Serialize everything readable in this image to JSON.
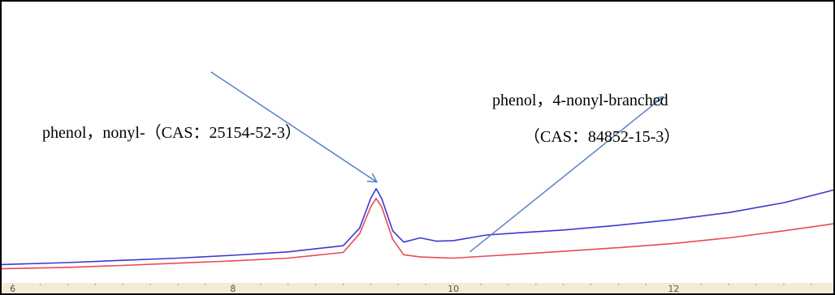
{
  "chart_data": {
    "type": "line",
    "title": "",
    "xlabel": "",
    "ylabel": "",
    "xlim": [
      5.9,
      13.45
    ],
    "ylim": [
      0,
      100
    ],
    "xticks": [
      "6",
      "8",
      "10",
      "12"
    ],
    "xtick_values": [
      6,
      8,
      10,
      12
    ],
    "grid": false,
    "series": [
      {
        "color": "#3a3ad0",
        "x": [
          5.9,
          6.5,
          7.0,
          7.5,
          8.0,
          8.5,
          9.0,
          9.15,
          9.25,
          9.3,
          9.35,
          9.45,
          9.55,
          9.7,
          9.85,
          10.0,
          10.3,
          10.6,
          11.0,
          11.5,
          12.0,
          12.5,
          13.0,
          13.45
        ],
        "y": [
          6.5,
          7.2,
          8.0,
          8.8,
          9.8,
          11.0,
          13.2,
          19.5,
          30.0,
          33.5,
          30.0,
          18.5,
          14.5,
          16.0,
          14.8,
          15.0,
          17.0,
          17.8,
          18.8,
          20.5,
          22.5,
          25.0,
          28.5,
          33.0
        ]
      },
      {
        "color": "#e84a5a",
        "x": [
          5.9,
          6.5,
          7.0,
          7.5,
          8.0,
          8.5,
          9.0,
          9.15,
          9.25,
          9.3,
          9.35,
          9.45,
          9.55,
          9.7,
          9.85,
          10.0,
          10.3,
          10.6,
          11.0,
          11.5,
          12.0,
          12.5,
          13.0,
          13.45
        ],
        "y": [
          5.0,
          5.5,
          6.2,
          7.0,
          7.8,
          8.8,
          10.8,
          17.5,
          27.0,
          30.0,
          27.0,
          15.5,
          10.0,
          9.2,
          9.0,
          8.8,
          9.5,
          10.2,
          11.2,
          12.5,
          14.0,
          16.0,
          18.5,
          21.0
        ]
      }
    ],
    "annotations": [
      {
        "lines": [
          "phenol，nonyl-（CAS：25154-52-3）"
        ]
      },
      {
        "lines": [
          "phenol，4-nonyl-branched",
          "（CAS：84852-15-3）"
        ]
      }
    ],
    "arrows": [
      {
        "from": [
          7.8,
          75
        ],
        "to": [
          9.3,
          36
        ]
      },
      {
        "from": [
          10.15,
          11
        ],
        "to": [
          11.9,
          66
        ]
      }
    ],
    "colors": {
      "arrow": "#5b7fc1",
      "axis_bg": "#f1ecd6"
    }
  }
}
